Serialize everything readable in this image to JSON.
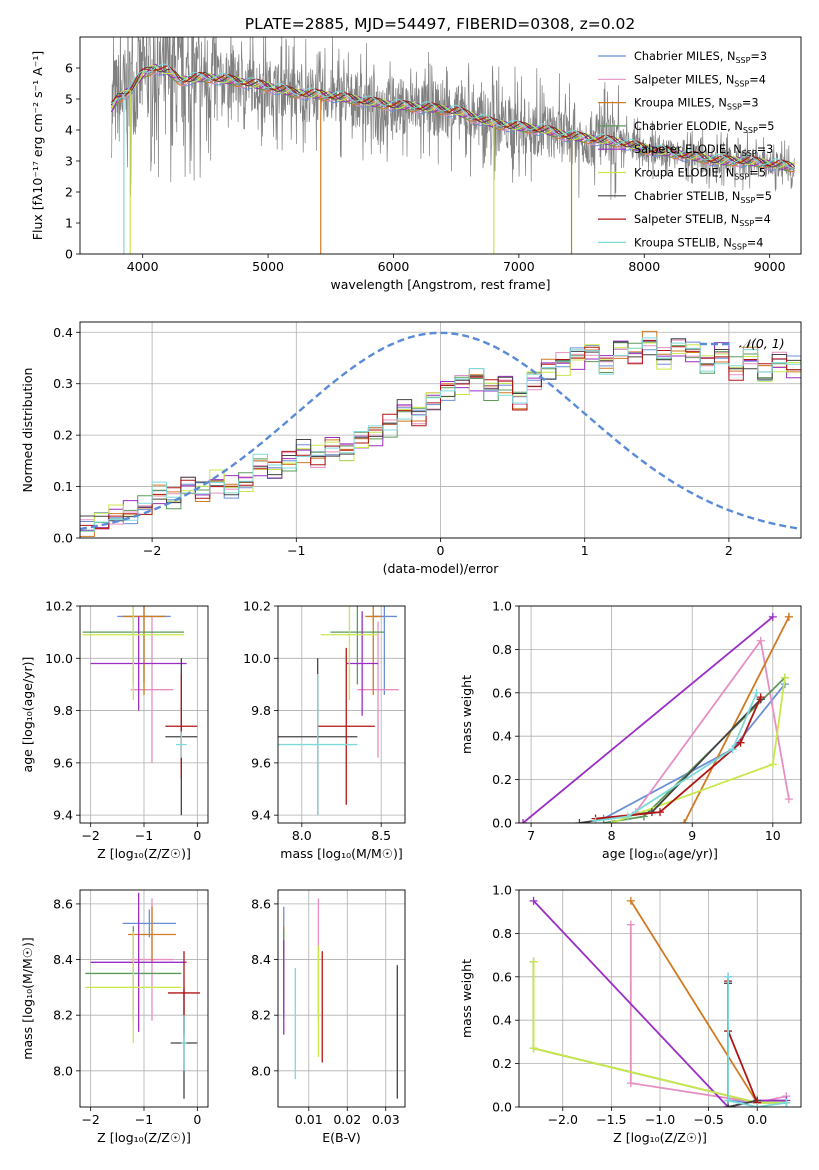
{
  "figure": {
    "title": "PLATE=2885, MJD=54497, FIBERID=0308, z=0.02"
  },
  "chart_data": [
    {
      "id": "spectrum",
      "type": "line",
      "xlabel": "wavelength [Angstrom, rest frame]",
      "ylabel": "Flux [f$_\\lambda$10$^{-17}$ erg cm$^{-2}$ s$^{-1}$ A$^{-1}$]",
      "ylabel_display": "Flux [fλ10⁻¹⁷ erg cm⁻² s⁻¹ A⁻¹]",
      "xlim": [
        3500,
        9250
      ],
      "ylim": [
        0,
        7
      ],
      "xticks": [
        4000,
        5000,
        6000,
        7000,
        8000,
        9000
      ],
      "yticks": [
        0,
        1,
        2,
        3,
        4,
        5,
        6
      ],
      "grid": false,
      "legend_position": "top-right",
      "continuum": {
        "x": [
          3750,
          3800,
          3900,
          4000,
          4100,
          4200,
          4300,
          4500,
          4700,
          5000,
          5200,
          5500,
          5800,
          6000,
          6300,
          6500,
          6800,
          7000,
          7200,
          7400,
          7600,
          7800,
          8000,
          8300,
          8600,
          8800,
          9000,
          9200
        ],
        "y": [
          4.7,
          5.0,
          5.3,
          5.8,
          6.0,
          5.9,
          5.6,
          5.7,
          5.6,
          5.4,
          5.2,
          5.1,
          4.9,
          4.8,
          4.7,
          4.6,
          4.2,
          4.1,
          4.0,
          3.8,
          3.7,
          3.6,
          3.4,
          3.2,
          3.0,
          3.0,
          2.9,
          2.8
        ]
      },
      "observed_color": "#808080",
      "series": [
        {
          "name": "Chabrier MILES, N$_{SSP}$=3",
          "label": "Chabrier MILES, N",
          "sub": "SSP",
          "tail": "=3",
          "color": "#6b8fd6"
        },
        {
          "name": "Salpeter MILES, N$_{SSP}$=4",
          "label": "Salpeter MILES, N",
          "sub": "SSP",
          "tail": "=4",
          "color": "#e58fc2"
        },
        {
          "name": "Kroupa MILES, N$_{SSP}$=3",
          "label": "Kroupa MILES, N",
          "sub": "SSP",
          "tail": "=3",
          "color": "#d07a22"
        },
        {
          "name": "Chabrier ELODIE, N$_{SSP}$=5",
          "label": "Chabrier ELODIE, N",
          "sub": "SSP",
          "tail": "=5",
          "color": "#5b9a5b"
        },
        {
          "name": "Salpeter ELODIE, N$_{SSP}$=3",
          "label": "Salpeter ELODIE, N",
          "sub": "SSP",
          "tail": "=3",
          "color": "#9a2ec4"
        },
        {
          "name": "Kroupa ELODIE, N$_{SSP}$=5",
          "label": "Kroupa ELODIE, N",
          "sub": "SSP",
          "tail": "=5",
          "color": "#c8e84a"
        },
        {
          "name": "Chabrier STELIB, N$_{SSP}$=5",
          "label": "Chabrier STELIB, N",
          "sub": "SSP",
          "tail": "=5",
          "color": "#444444"
        },
        {
          "name": "Salpeter STELIB, N$_{SSP}$=4",
          "label": "Salpeter STELIB, N",
          "sub": "SSP",
          "tail": "=4",
          "color": "#b01515"
        },
        {
          "name": "Kroupa STELIB, N$_{SSP}$=4",
          "label": "Kroupa STELIB, N",
          "sub": "SSP",
          "tail": "=4",
          "color": "#7fd9d9"
        }
      ]
    },
    {
      "id": "residuals",
      "type": "step",
      "xlabel": "(data-model)/error",
      "ylabel": "Normed distribution",
      "xlim": [
        -2.5,
        2.5
      ],
      "ylim": [
        0,
        0.42
      ],
      "xticks": [
        -2,
        -1,
        0,
        1,
        2
      ],
      "yticks": [
        0.0,
        0.1,
        0.2,
        0.3,
        0.4
      ],
      "grid": true,
      "legend_position": "top-right",
      "gaussian": {
        "name": "N(0,1)",
        "label_display": "𝒩(0, 1)",
        "color": "#5a8bd6",
        "mean": 0,
        "sigma": 1
      },
      "bins": {
        "start": -2.5,
        "width": 0.1
      },
      "histogram_base": [
        0.02,
        0.03,
        0.045,
        0.05,
        0.06,
        0.085,
        0.075,
        0.1,
        0.09,
        0.11,
        0.1,
        0.11,
        0.14,
        0.13,
        0.15,
        0.17,
        0.16,
        0.18,
        0.17,
        0.19,
        0.2,
        0.22,
        0.25,
        0.24,
        0.27,
        0.29,
        0.3,
        0.31,
        0.29,
        0.3,
        0.27,
        0.31,
        0.33,
        0.34,
        0.35,
        0.36,
        0.34,
        0.37,
        0.36,
        0.38,
        0.35,
        0.37,
        0.36,
        0.34,
        0.36,
        0.33,
        0.35,
        0.32,
        0.34,
        0.33,
        0.31,
        0.32,
        0.34,
        0.3,
        0.32,
        0.31,
        0.29,
        0.3,
        0.27,
        0.28,
        0.25,
        0.24,
        0.22,
        0.21,
        0.2,
        0.19,
        0.17,
        0.15,
        0.16,
        0.14,
        0.13,
        0.13,
        0.12,
        0.1,
        0.11,
        0.09,
        0.085,
        0.08,
        0.075,
        0.07,
        0.065,
        0.06,
        0.06,
        0.055,
        0.05,
        0.05,
        0.05,
        0.05,
        0.045,
        0.04,
        0.04,
        0.04,
        0.04,
        0.04,
        0.04,
        0.05,
        0.05,
        0.05,
        0.05,
        0.05
      ]
    },
    {
      "id": "age-vs-Z",
      "type": "errorbar",
      "xlabel": "Z [log$_{10}$(Z/Z$_\\odot$)]",
      "xlabel_display": "Z [log₁₀(Z/Z☉)]",
      "ylabel": "age  [log$_{10}$(age/yr)]",
      "ylabel_display": "age  [log₁₀(age/yr)]",
      "xlim": [
        -2.2,
        0.2
      ],
      "ylim": [
        9.37,
        10.2
      ],
      "xticks": [
        -2,
        -1,
        0
      ],
      "yticks": [
        9.4,
        9.6,
        9.8,
        10.0,
        10.2
      ],
      "grid": true,
      "points": [
        {
          "x": -1.0,
          "y": 10.16,
          "xerr": 0.5,
          "yerr": 0.25,
          "color": "#6b8fd6"
        },
        {
          "x": -0.85,
          "y": 9.88,
          "xerr": 0.4,
          "yerr": 0.28,
          "color": "#e58fc2"
        },
        {
          "x": -1.0,
          "y": 10.16,
          "xerr": 0.4,
          "yerr": 0.3,
          "color": "#d07a22"
        },
        {
          "x": -1.2,
          "y": 10.1,
          "xerr": 0.95,
          "yerr": 0.2,
          "color": "#5b9a5b"
        },
        {
          "x": -1.1,
          "y": 9.98,
          "xerr": 0.9,
          "yerr": 0.18,
          "color": "#9a2ec4"
        },
        {
          "x": -1.2,
          "y": 10.09,
          "xerr": 0.95,
          "yerr": 0.25,
          "color": "#c8e84a"
        },
        {
          "x": -0.3,
          "y": 9.7,
          "xerr": 0.3,
          "yerr": 0.3,
          "color": "#444444"
        },
        {
          "x": -0.3,
          "y": 9.74,
          "xerr": 0.3,
          "yerr": 0.2,
          "color": "#b01515"
        },
        {
          "x": -0.3,
          "y": 9.67,
          "xerr": 0.1,
          "yerr": 0.05,
          "color": "#7fd9d9"
        }
      ]
    },
    {
      "id": "age-vs-mass",
      "type": "errorbar",
      "xlabel": "mass [log$_{10}$(M/M$_\\odot$)]",
      "xlabel_display": "mass [log₁₀(M/M☉)]",
      "ylabel": "",
      "xlim": [
        7.85,
        8.65
      ],
      "ylim": [
        9.37,
        10.2
      ],
      "xticks": [
        8.0,
        8.5
      ],
      "yticks": [
        9.4,
        9.6,
        9.8,
        10.0,
        10.2
      ],
      "grid": true,
      "points": [
        {
          "x": 8.52,
          "y": 10.16,
          "xerr": 0.08,
          "yerr": 0.3,
          "color": "#6b8fd6"
        },
        {
          "x": 8.48,
          "y": 9.88,
          "xerr": 0.13,
          "yerr": 0.26,
          "color": "#e58fc2"
        },
        {
          "x": 8.45,
          "y": 10.16,
          "xerr": 0.05,
          "yerr": 0.3,
          "color": "#d07a22"
        },
        {
          "x": 8.35,
          "y": 10.1,
          "xerr": 0.17,
          "yerr": 0.2,
          "color": "#5b9a5b"
        },
        {
          "x": 8.38,
          "y": 9.98,
          "xerr": 0.1,
          "yerr": 0.2,
          "color": "#9a2ec4"
        },
        {
          "x": 8.3,
          "y": 10.09,
          "xerr": 0.18,
          "yerr": 0.25,
          "color": "#c8e84a"
        },
        {
          "x": 8.1,
          "y": 9.7,
          "xerr": 0.25,
          "yerr": 0.3,
          "color": "#444444"
        },
        {
          "x": 8.28,
          "y": 9.74,
          "xerr": 0.18,
          "yerr": 0.3,
          "color": "#b01515"
        },
        {
          "x": 8.1,
          "y": 9.67,
          "xerr": 0.25,
          "yerr": 0.27,
          "color": "#7fd9d9"
        }
      ]
    },
    {
      "id": "weight-vs-age",
      "type": "line",
      "xlabel": "age  [log$_{10}$(age/yr)]",
      "xlabel_display": "age  [log₁₀(age/yr)]",
      "ylabel": "mass weight",
      "xlim": [
        6.85,
        10.35
      ],
      "ylim": [
        0,
        1.0
      ],
      "xticks": [
        7,
        8,
        9,
        10
      ],
      "yticks": [
        0.0,
        0.2,
        0.4,
        0.6,
        0.8,
        1.0
      ],
      "grid": true,
      "series": [
        {
          "color": "#6b8fd6",
          "x": [
            7.9,
            9.5,
            10.15
          ],
          "y": [
            0.02,
            0.34,
            0.64
          ]
        },
        {
          "color": "#e58fc2",
          "x": [
            8.3,
            9.85,
            10.2
          ],
          "y": [
            0.05,
            0.84,
            0.11
          ]
        },
        {
          "color": "#d07a22",
          "x": [
            8.9,
            10.2,
            10.2
          ],
          "y": [
            0.0,
            0.95,
            0.95
          ]
        },
        {
          "color": "#5b9a5b",
          "x": [
            7.9,
            8.4,
            10.15
          ],
          "y": [
            0.0,
            0.03,
            0.67
          ]
        },
        {
          "color": "#9a2ec4",
          "x": [
            6.9,
            10.0
          ],
          "y": [
            0.0,
            0.95
          ]
        },
        {
          "color": "#c8e84a",
          "x": [
            8.0,
            10.0,
            10.15
          ],
          "y": [
            0.0,
            0.27,
            0.67
          ]
        },
        {
          "color": "#444444",
          "x": [
            7.6,
            8.5,
            9.85,
            9.85
          ],
          "y": [
            0.0,
            0.05,
            0.57,
            0.57
          ]
        },
        {
          "color": "#b01515",
          "x": [
            7.8,
            8.6,
            9.6,
            9.85
          ],
          "y": [
            0.02,
            0.05,
            0.37,
            0.58
          ]
        },
        {
          "color": "#7fd9d9",
          "x": [
            7.8,
            8.2,
            9.5,
            9.8
          ],
          "y": [
            0.01,
            0.03,
            0.34,
            0.6
          ]
        }
      ]
    },
    {
      "id": "mass-vs-Z",
      "type": "errorbar",
      "xlabel": "Z [log$_{10}$(Z/Z$_\\odot$)]",
      "xlabel_display": "Z [log₁₀(Z/Z☉)]",
      "ylabel": "mass [log$_{10}$(M/M$_\\odot$)]",
      "ylabel_display": "mass [log₁₀(M/M☉)]",
      "xlim": [
        -2.2,
        0.2
      ],
      "ylim": [
        7.87,
        8.65
      ],
      "xticks": [
        -2,
        -1,
        0
      ],
      "yticks": [
        8.0,
        8.2,
        8.4,
        8.6
      ],
      "grid": true,
      "points": [
        {
          "x": -0.9,
          "y": 8.53,
          "xerr": 0.5,
          "yerr": 0.05,
          "color": "#6b8fd6"
        },
        {
          "x": -0.85,
          "y": 8.4,
          "xerr": 0.4,
          "yerr": 0.22,
          "color": "#e58fc2"
        },
        {
          "x": -0.85,
          "y": 8.49,
          "xerr": 0.45,
          "yerr": 0.1,
          "color": "#d07a22"
        },
        {
          "x": -1.2,
          "y": 8.35,
          "xerr": 0.9,
          "yerr": 0.17,
          "color": "#5b9a5b"
        },
        {
          "x": -1.1,
          "y": 8.39,
          "xerr": 0.9,
          "yerr": 0.25,
          "color": "#9a2ec4"
        },
        {
          "x": -1.2,
          "y": 8.3,
          "xerr": 0.9,
          "yerr": 0.2,
          "color": "#c8e84a"
        },
        {
          "x": -0.25,
          "y": 8.1,
          "xerr": 0.25,
          "yerr": 0.2,
          "color": "#444444"
        },
        {
          "x": -0.25,
          "y": 8.28,
          "xerr": 0.3,
          "yerr": 0.15,
          "color": "#b01515"
        },
        {
          "x": -0.25,
          "y": 8.1,
          "xerr": 0.05,
          "yerr": 0.1,
          "color": "#7fd9d9"
        }
      ]
    },
    {
      "id": "mass-vs-EBV",
      "type": "errorbar",
      "xlabel": "E(B-V)",
      "ylabel": "",
      "xlim": [
        0.002,
        0.035
      ],
      "ylim": [
        7.87,
        8.65
      ],
      "xticks": [
        0.01,
        0.02,
        0.03
      ],
      "yticks": [
        8.0,
        8.2,
        8.4,
        8.6
      ],
      "grid": true,
      "points": [
        {
          "x": 0.0035,
          "y": 8.42,
          "xerr": 0,
          "yerr": 0.17,
          "color": "#6b8fd6"
        },
        {
          "x": 0.0125,
          "y": 8.4,
          "xerr": 0,
          "yerr": 0.22,
          "color": "#e58fc2"
        },
        {
          "x": 0.0035,
          "y": 8.4,
          "xerr": 0,
          "yerr": 0.12,
          "color": "#d07a22"
        },
        {
          "x": 0.0035,
          "y": 8.35,
          "xerr": 0,
          "yerr": 0.16,
          "color": "#5b9a5b"
        },
        {
          "x": 0.0035,
          "y": 8.3,
          "xerr": 0,
          "yerr": 0.17,
          "color": "#9a2ec4"
        },
        {
          "x": 0.0125,
          "y": 8.25,
          "xerr": 0,
          "yerr": 0.2,
          "color": "#c8e84a"
        },
        {
          "x": 0.033,
          "y": 8.14,
          "xerr": 0,
          "yerr": 0.24,
          "color": "#444444"
        },
        {
          "x": 0.0135,
          "y": 8.23,
          "xerr": 0,
          "yerr": 0.2,
          "color": "#b01515"
        },
        {
          "x": 0.0065,
          "y": 8.17,
          "xerr": 0,
          "yerr": 0.2,
          "color": "#7fd9d9"
        }
      ]
    },
    {
      "id": "weight-vs-Z",
      "type": "line",
      "xlabel": "Z [log$_{10}$(Z/Z$_\\odot$)]",
      "xlabel_display": "Z [log₁₀(Z/Z☉)]",
      "ylabel": "mass weight",
      "xlim": [
        -2.45,
        0.45
      ],
      "ylim": [
        0,
        1.0
      ],
      "xticks": [
        -2.0,
        -1.5,
        -1.0,
        -0.5,
        0.0
      ],
      "yticks": [
        0.0,
        0.2,
        0.4,
        0.6,
        0.8,
        1.0
      ],
      "grid": true,
      "series": [
        {
          "color": "#6b8fd6",
          "x": [
            -0.3,
            -0.3,
            0.0,
            0.3
          ],
          "y": [
            0.6,
            0.03,
            0.02,
            0.02
          ]
        },
        {
          "color": "#e58fc2",
          "x": [
            -1.3,
            -1.3,
            0.0,
            0.3
          ],
          "y": [
            0.84,
            0.11,
            0.02,
            0.05
          ]
        },
        {
          "color": "#d07a22",
          "x": [
            -1.3,
            0.0,
            0.0
          ],
          "y": [
            0.95,
            0.02,
            0.02
          ]
        },
        {
          "color": "#5b9a5b",
          "x": [
            -2.3,
            -2.3,
            0.0,
            0.3
          ],
          "y": [
            0.67,
            0.27,
            0.02,
            0.02
          ]
        },
        {
          "color": "#9a2ec4",
          "x": [
            -2.3,
            -0.3,
            0.0,
            0.3
          ],
          "y": [
            0.95,
            0.0,
            0.03,
            0.03
          ]
        },
        {
          "color": "#c8e84a",
          "x": [
            -2.3,
            -2.3,
            0.0,
            0.3
          ],
          "y": [
            0.67,
            0.27,
            0.02,
            0.02
          ]
        },
        {
          "color": "#444444",
          "x": [
            -0.3,
            -0.3,
            0.0
          ],
          "y": [
            0.57,
            0.0,
            0.03
          ]
        },
        {
          "color": "#b01515",
          "x": [
            -0.3,
            -0.3,
            0.0
          ],
          "y": [
            0.58,
            0.35,
            0.02
          ]
        },
        {
          "color": "#7fd9d9",
          "x": [
            -0.3,
            -0.3,
            0.0,
            0.3
          ],
          "y": [
            0.6,
            0.03,
            0.0,
            0.02
          ]
        }
      ]
    }
  ]
}
